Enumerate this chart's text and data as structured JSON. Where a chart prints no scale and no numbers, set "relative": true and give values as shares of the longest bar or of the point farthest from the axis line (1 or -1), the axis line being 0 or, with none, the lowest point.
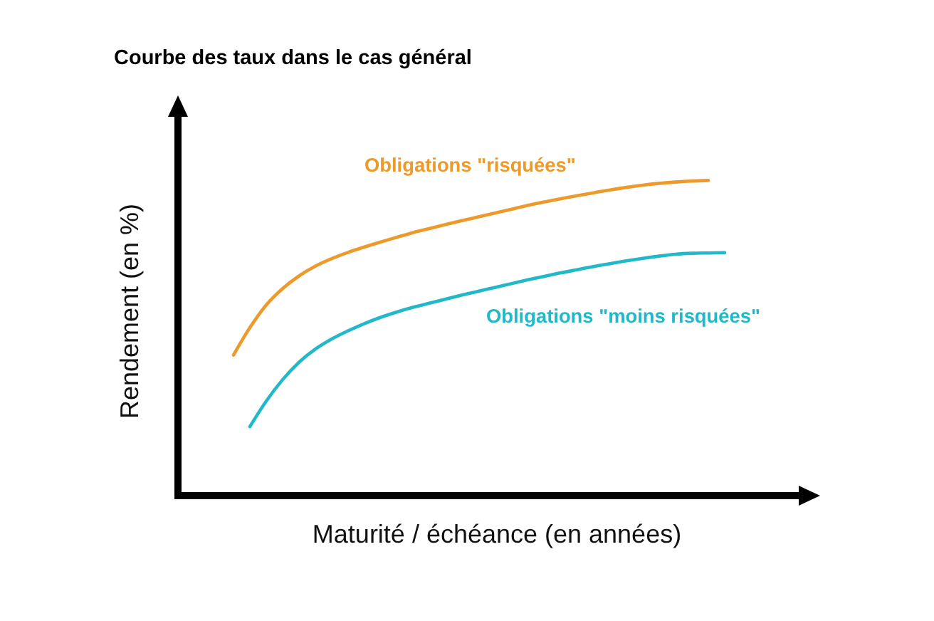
{
  "chart_data": {
    "type": "line",
    "title": "Courbe des taux dans le cas général",
    "xlabel": "Maturité / échéance (en années)",
    "ylabel": "Rendement (en %)",
    "relative": true,
    "categories": [
      null,
      null,
      null,
      null,
      null,
      null,
      null,
      null,
      null,
      null,
      null,
      null,
      null,
      null,
      null,
      null,
      null,
      null,
      null,
      null,
      null,
      null,
      null,
      null,
      null,
      null,
      null,
      null,
      null,
      null,
      null
    ],
    "series": [
      {
        "name": "Obligations \"risquées\"",
        "color": "#ec9a2b",
        "values": [
          0.446,
          0.533,
          0.605,
          0.657,
          0.697,
          0.728,
          0.752,
          0.772,
          0.789,
          0.805,
          0.82,
          0.835,
          0.848,
          0.861,
          0.873,
          0.885,
          0.897,
          0.909,
          0.921,
          0.932,
          0.942,
          0.952,
          0.961,
          0.97,
          0.978,
          0.985,
          0.991,
          0.995,
          0.998,
          1.0,
          null
        ]
      },
      {
        "name": "Obligations \"moins risquées\"",
        "color": "#21b8c9",
        "values": [
          null,
          0.219,
          0.3,
          0.368,
          0.423,
          0.465,
          0.497,
          0.523,
          0.546,
          0.566,
          0.583,
          0.598,
          0.611,
          0.624,
          0.637,
          0.649,
          0.661,
          0.673,
          0.685,
          0.696,
          0.707,
          0.717,
          0.727,
          0.736,
          0.745,
          0.753,
          0.76,
          0.766,
          0.769,
          0.77,
          0.771
        ]
      }
    ]
  }
}
